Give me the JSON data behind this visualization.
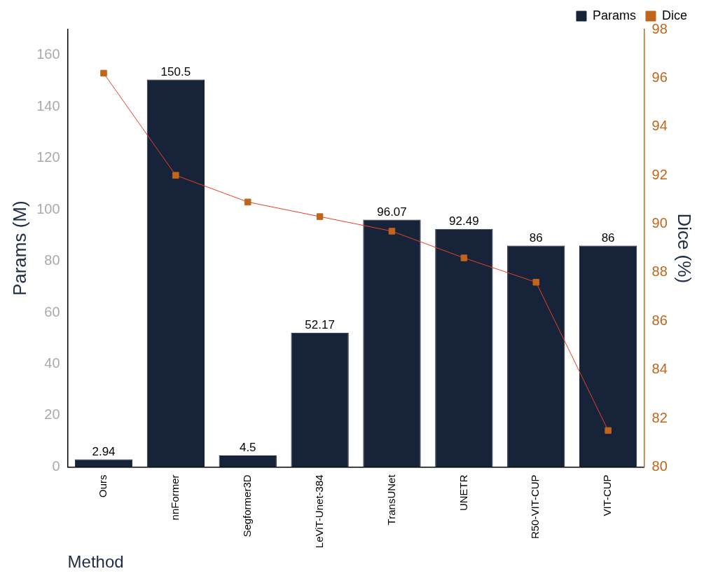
{
  "chart_data": {
    "type": "bar",
    "xlabel": "Method",
    "ylabel": "Params (M)",
    "y2label": "Dice (%)",
    "categories": [
      "Ours",
      "nnFormer",
      "Segformer3D",
      "LeViT-Unet-384",
      "TransUNet",
      "UNETR",
      "R50-VIT-CUP",
      "VIT-CUP"
    ],
    "series": [
      {
        "name": "Params",
        "color": "#172338",
        "values": [
          2.94,
          150.5,
          4.5,
          52.17,
          96.07,
          92.49,
          86,
          86
        ],
        "value_labels": [
          "2.94",
          "150.5",
          "4.5",
          "52.17",
          "96.07",
          "92.49",
          "86",
          "86"
        ]
      },
      {
        "name": "Dice",
        "type": "line",
        "axis": "y2",
        "color": "#c0651a",
        "marker": "square",
        "values": [
          96.2,
          92.0,
          90.9,
          90.3,
          89.7,
          88.6,
          87.6,
          81.5
        ]
      }
    ],
    "ylim": [
      0,
      170
    ],
    "yticks": [
      0,
      20,
      40,
      60,
      80,
      100,
      120,
      140,
      160
    ],
    "y2lim": [
      80,
      98
    ],
    "y2ticks": [
      80,
      82,
      84,
      86,
      88,
      90,
      92,
      94,
      96,
      98
    ],
    "grid": false,
    "legend": "top right"
  }
}
